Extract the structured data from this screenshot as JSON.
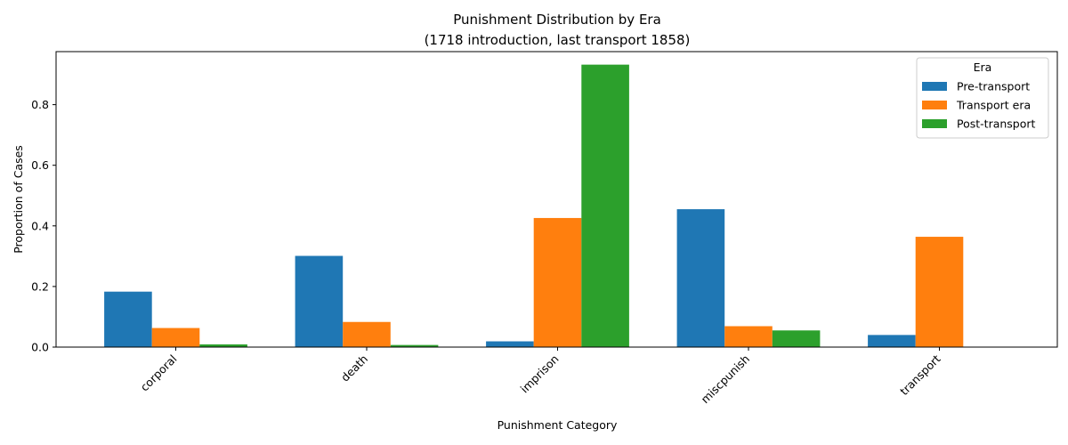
{
  "chart_data": {
    "type": "bar",
    "title": "Punishment Distribution by Era",
    "subtitle": "(1718 introduction, last transport 1858)",
    "xlabel": "Punishment Category",
    "ylabel": "Proportion of Cases",
    "categories": [
      "corporal",
      "death",
      "imprison",
      "miscpunish",
      "transport"
    ],
    "yticks": [
      "0.0",
      "0.2",
      "0.4",
      "0.6",
      "0.8"
    ],
    "ylim": [
      0,
      0.975
    ],
    "grid": false,
    "legend": {
      "title": "Era",
      "placement": "top-right"
    },
    "series": [
      {
        "name": "Pre-transport",
        "color": "#1f77b4",
        "values": [
          0.183,
          0.301,
          0.019,
          0.455,
          0.04
        ]
      },
      {
        "name": "Transport era",
        "color": "#ff7f0e",
        "values": [
          0.063,
          0.083,
          0.426,
          0.069,
          0.364
        ]
      },
      {
        "name": "Post-transport",
        "color": "#2ca02c",
        "values": [
          0.009,
          0.007,
          0.932,
          0.055,
          0.0
        ]
      }
    ]
  }
}
